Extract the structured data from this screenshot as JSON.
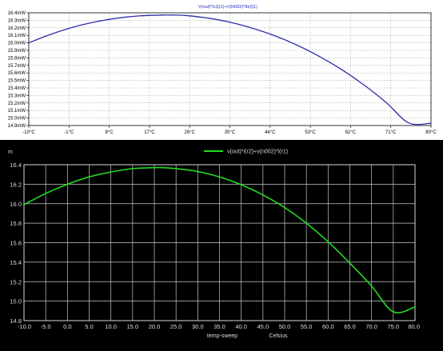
{
  "chart_data": [
    {
      "type": "line",
      "title": "V(out)*Ic(Q1)+V(N002)*Ib(Q1)",
      "xlim": [
        -10,
        80
      ],
      "ylim": [
        14.9,
        16.4
      ],
      "x_tick_labels": [
        "-10°C",
        "-1°C",
        "8°C",
        "17°C",
        "26°C",
        "35°C",
        "44°C",
        "53°C",
        "62°C",
        "71°C",
        "80°C"
      ],
      "y_tick_labels": [
        "14.9mW",
        "15.0mW",
        "15.1mW",
        "15.2mW",
        "15.3mW",
        "15.4mW",
        "15.5mW",
        "15.6mW",
        "15.7mW",
        "15.8mW",
        "15.9mW",
        "16.0mW",
        "16.1mW",
        "16.2mW",
        "16.3mW",
        "16.4mW"
      ],
      "grid": true,
      "line_color": "#2c2ca8",
      "background": "#ffffff",
      "series": [
        {
          "x": [
            -10,
            -5,
            0,
            5,
            10,
            15,
            20,
            22,
            25,
            30,
            35,
            40,
            45,
            50,
            55,
            60,
            65,
            70,
            75,
            80
          ],
          "values": [
            16.0,
            16.115,
            16.21,
            16.28,
            16.33,
            16.36,
            16.37,
            16.37,
            16.365,
            16.33,
            16.275,
            16.195,
            16.095,
            15.97,
            15.82,
            15.645,
            15.44,
            15.205,
            14.935,
            14.93
          ]
        }
      ]
    },
    {
      "type": "line",
      "title": "",
      "legend": "v(out)*i(r2)+v(n002)*i(r1)",
      "legend_position": "top-center",
      "y_unit": "m",
      "xlabel": "temp-sweep",
      "x_unit": "Celsius",
      "xlim": [
        -10,
        80
      ],
      "ylim": [
        14.8,
        16.4
      ],
      "x_tick_labels": [
        "-10.0",
        "-5.0",
        "0.0",
        "5.0",
        "10.0",
        "15.0",
        "20.0",
        "25.0",
        "30.0",
        "35.0",
        "40.0",
        "45.0",
        "50.0",
        "55.0",
        "60.0",
        "65.0",
        "70.0",
        "75.0",
        "80.0"
      ],
      "y_tick_labels": [
        "14.8",
        "15.0",
        "15.2",
        "15.4",
        "15.6",
        "15.8",
        "16.0",
        "16.2",
        "16.4"
      ],
      "grid": true,
      "line_color": "#22dd22",
      "background": "#000000",
      "series": [
        {
          "name": "v(out)*i(r2)+v(n002)*i(r1)",
          "x": [
            -10,
            -5,
            0,
            5,
            10,
            15,
            20,
            22,
            25,
            30,
            35,
            40,
            45,
            50,
            55,
            60,
            65,
            70,
            75,
            80
          ],
          "values": [
            15.99,
            16.105,
            16.2,
            16.275,
            16.325,
            16.36,
            16.37,
            16.37,
            16.36,
            16.33,
            16.275,
            16.195,
            16.09,
            15.96,
            15.8,
            15.61,
            15.39,
            15.155,
            14.89,
            14.94
          ]
        }
      ]
    }
  ]
}
